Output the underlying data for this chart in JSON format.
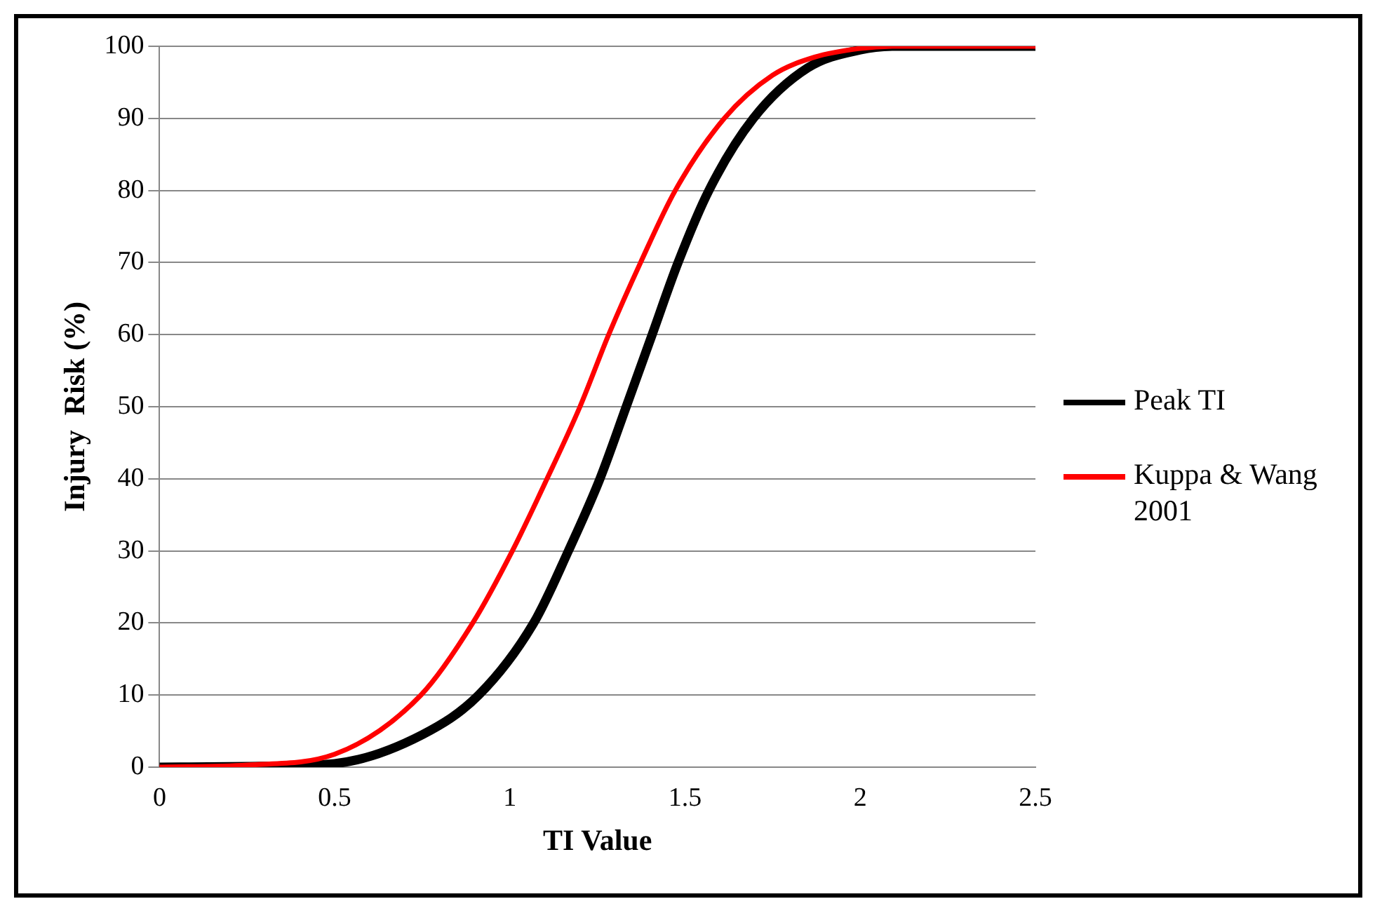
{
  "chart_data": {
    "type": "line",
    "xlabel": "TI Value",
    "ylabel": "Injury  Risk (%)",
    "xlim": [
      0,
      2.5
    ],
    "xticks": [
      0,
      0.5,
      1,
      1.5,
      2,
      2.5
    ],
    "ylim": [
      0,
      100
    ],
    "yticks": [
      0,
      10,
      20,
      30,
      40,
      50,
      60,
      70,
      80,
      90,
      100
    ],
    "grid": "y",
    "legend": "right",
    "marker": "none",
    "line_style": "solid",
    "series": [
      {
        "name": "Peak TI",
        "color": "#000000",
        "x": [
          0,
          0.25,
          0.5,
          0.75,
          0.911,
          1.068,
          1.167,
          1.257,
          1.332,
          1.406,
          1.48,
          1.568,
          1.695,
          1.85,
          2.0,
          2.1,
          2.5
        ],
        "values": [
          0,
          0.1,
          0.5,
          4.5,
          10,
          20,
          30,
          40,
          50,
          60,
          70,
          80,
          90,
          97,
          99.5,
          100,
          100
        ]
      },
      {
        "name": "Kuppa & Wang 2001",
        "color": "#ff0000",
        "x": [
          0,
          0.25,
          0.5,
          0.746,
          0.894,
          1.007,
          1.106,
          1.2,
          1.282,
          1.373,
          1.472,
          1.612,
          1.75,
          1.87,
          2.0,
          2.1,
          2.5
        ],
        "values": [
          0,
          0.3,
          1.8,
          10,
          20,
          30,
          40,
          50,
          60,
          70,
          80,
          90,
          96,
          98.5,
          99.7,
          100,
          100
        ]
      }
    ]
  }
}
